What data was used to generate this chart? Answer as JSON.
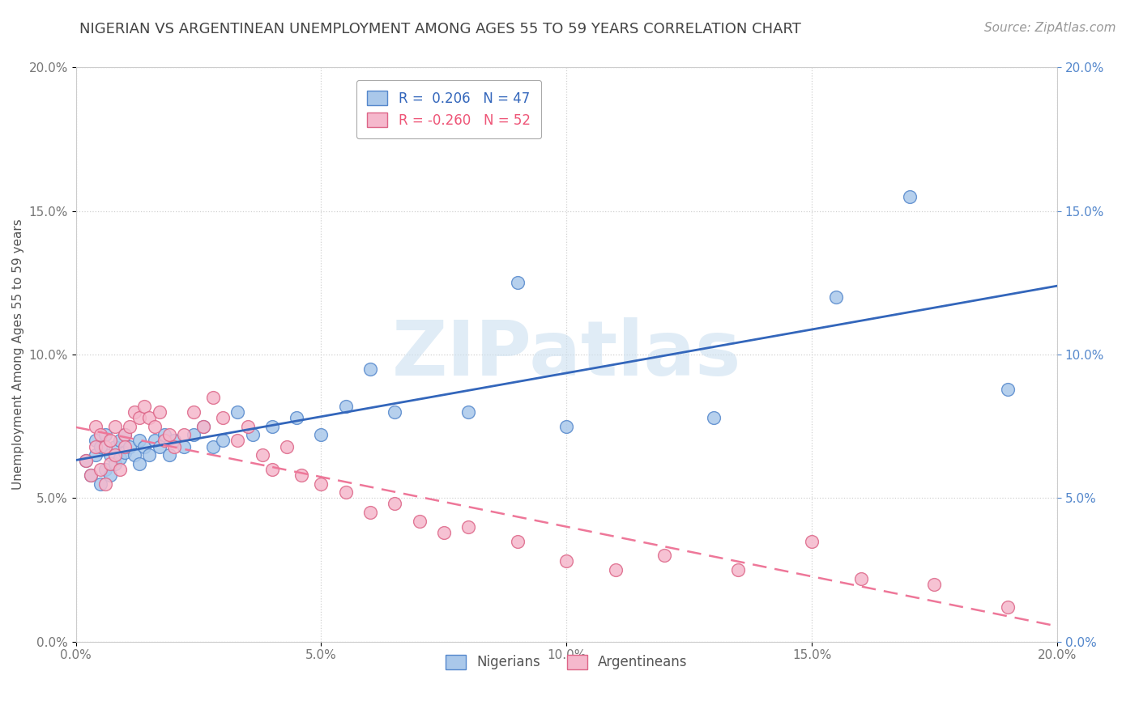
{
  "title": "NIGERIAN VS ARGENTINEAN UNEMPLOYMENT AMONG AGES 55 TO 59 YEARS CORRELATION CHART",
  "source": "Source: ZipAtlas.com",
  "ylabel": "Unemployment Among Ages 55 to 59 years",
  "xlim": [
    0.0,
    0.2
  ],
  "ylim": [
    0.0,
    0.2
  ],
  "xticks": [
    0.0,
    0.05,
    0.1,
    0.15,
    0.2
  ],
  "yticks": [
    0.0,
    0.05,
    0.1,
    0.15,
    0.2
  ],
  "xticklabels": [
    "0.0%",
    "5.0%",
    "10.0%",
    "15.0%",
    "20.0%"
  ],
  "yticklabels": [
    "0.0%",
    "5.0%",
    "10.0%",
    "15.0%",
    "20.0%"
  ],
  "nigerian_R": 0.206,
  "nigerian_N": 47,
  "argentinean_R": -0.26,
  "argentinean_N": 52,
  "nigerian_color": "#aac8ea",
  "nigerian_edge": "#5588cc",
  "argentinean_color": "#f5b8cc",
  "argentinean_edge": "#dd6688",
  "nigerian_line_color": "#3366bb",
  "argentinean_line_color": "#ee7799",
  "background_color": "#ffffff",
  "grid_color": "#cccccc",
  "title_fontsize": 13,
  "label_fontsize": 11,
  "tick_fontsize": 11,
  "legend_fontsize": 12,
  "source_fontsize": 11,
  "nigerian_x": [
    0.002,
    0.003,
    0.004,
    0.004,
    0.005,
    0.005,
    0.006,
    0.006,
    0.007,
    0.007,
    0.008,
    0.008,
    0.009,
    0.009,
    0.01,
    0.01,
    0.011,
    0.012,
    0.013,
    0.013,
    0.014,
    0.015,
    0.016,
    0.017,
    0.018,
    0.019,
    0.02,
    0.022,
    0.024,
    0.026,
    0.028,
    0.03,
    0.033,
    0.036,
    0.04,
    0.045,
    0.05,
    0.055,
    0.06,
    0.065,
    0.08,
    0.09,
    0.1,
    0.13,
    0.155,
    0.17,
    0.19
  ],
  "nigerian_y": [
    0.063,
    0.058,
    0.07,
    0.065,
    0.055,
    0.068,
    0.06,
    0.072,
    0.065,
    0.058,
    0.068,
    0.062,
    0.07,
    0.064,
    0.066,
    0.072,
    0.068,
    0.065,
    0.07,
    0.062,
    0.068,
    0.065,
    0.07,
    0.068,
    0.072,
    0.065,
    0.07,
    0.068,
    0.072,
    0.075,
    0.068,
    0.07,
    0.08,
    0.072,
    0.075,
    0.078,
    0.072,
    0.082,
    0.095,
    0.08,
    0.08,
    0.125,
    0.075,
    0.078,
    0.12,
    0.155,
    0.088
  ],
  "argentinean_x": [
    0.002,
    0.003,
    0.004,
    0.004,
    0.005,
    0.005,
    0.006,
    0.006,
    0.007,
    0.007,
    0.008,
    0.008,
    0.009,
    0.01,
    0.01,
    0.011,
    0.012,
    0.013,
    0.014,
    0.015,
    0.016,
    0.017,
    0.018,
    0.019,
    0.02,
    0.022,
    0.024,
    0.026,
    0.028,
    0.03,
    0.033,
    0.035,
    0.038,
    0.04,
    0.043,
    0.046,
    0.05,
    0.055,
    0.06,
    0.065,
    0.07,
    0.075,
    0.08,
    0.09,
    0.1,
    0.11,
    0.12,
    0.135,
    0.15,
    0.16,
    0.175,
    0.19
  ],
  "argentinean_y": [
    0.063,
    0.058,
    0.075,
    0.068,
    0.06,
    0.072,
    0.055,
    0.068,
    0.07,
    0.062,
    0.075,
    0.065,
    0.06,
    0.072,
    0.068,
    0.075,
    0.08,
    0.078,
    0.082,
    0.078,
    0.075,
    0.08,
    0.07,
    0.072,
    0.068,
    0.072,
    0.08,
    0.075,
    0.085,
    0.078,
    0.07,
    0.075,
    0.065,
    0.06,
    0.068,
    0.058,
    0.055,
    0.052,
    0.045,
    0.048,
    0.042,
    0.038,
    0.04,
    0.035,
    0.028,
    0.025,
    0.03,
    0.025,
    0.035,
    0.022,
    0.02,
    0.012
  ]
}
